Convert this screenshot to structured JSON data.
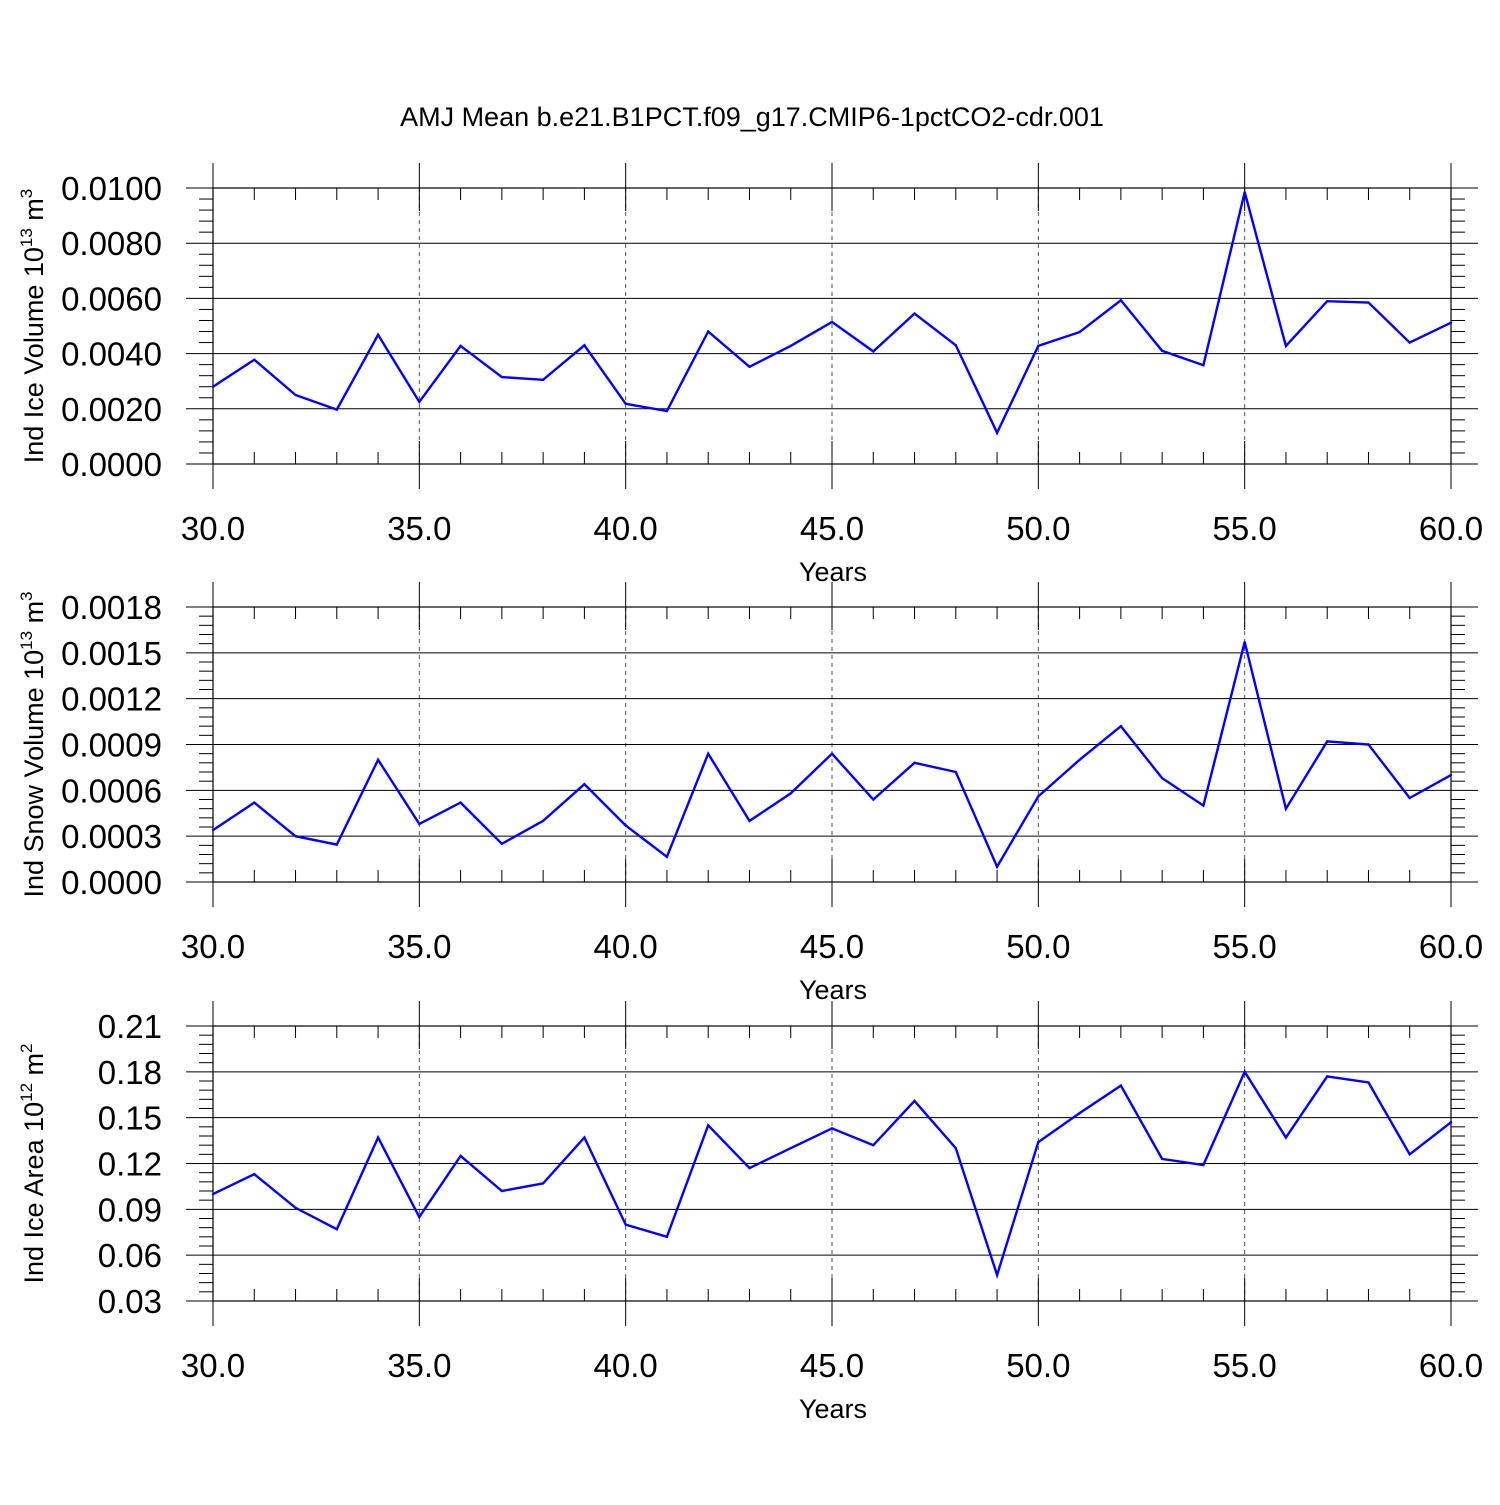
{
  "chart_data": {
    "title": "AMJ Mean b.e21.B1PCT.f09_g17.CMIP6-1pctCO2-cdr.001",
    "line_color": "#0000ff",
    "panels": [
      {
        "type": "line",
        "ylabel_main": "Ind Ice Volume 10",
        "ylabel_exp": "13",
        "ylabel_unit": " m",
        "ylabel_unit_exp": "3",
        "xlabel": "Years",
        "xlim": [
          30,
          60
        ],
        "ylim": [
          0,
          0.01
        ],
        "x_ticks": [
          30,
          35,
          40,
          45,
          50,
          55,
          60
        ],
        "x_tick_labels": [
          "30.0",
          "35.0",
          "40.0",
          "45.0",
          "50.0",
          "55.0",
          "60.0"
        ],
        "y_ticks": [
          0,
          0.002,
          0.004,
          0.006,
          0.008,
          0.01
        ],
        "y_tick_labels": [
          "0.0000",
          "0.0020",
          "0.0040",
          "0.0060",
          "0.0080",
          "0.0100"
        ],
        "x": [
          30,
          31,
          32,
          33,
          34,
          35,
          36,
          37,
          38,
          39,
          40,
          41,
          42,
          43,
          44,
          45,
          46,
          47,
          48,
          49,
          50,
          51,
          52,
          53,
          54,
          55,
          56,
          57,
          58,
          59,
          60
        ],
        "values": [
          0.0028,
          0.00378,
          0.0025,
          0.00197,
          0.00468,
          0.00225,
          0.00428,
          0.00315,
          0.00305,
          0.0043,
          0.00218,
          0.00192,
          0.0048,
          0.00352,
          0.00428,
          0.00515,
          0.00408,
          0.00545,
          0.0043,
          0.00113,
          0.00428,
          0.00478,
          0.00593,
          0.0041,
          0.00358,
          0.00985,
          0.00428,
          0.0059,
          0.00585,
          0.0044,
          0.00512
        ]
      },
      {
        "type": "line",
        "ylabel_main": "Ind Snow Volume 10",
        "ylabel_exp": "13",
        "ylabel_unit": " m",
        "ylabel_unit_exp": "3",
        "xlabel": "Years",
        "xlim": [
          30,
          60
        ],
        "ylim": [
          0,
          0.0018
        ],
        "x_ticks": [
          30,
          35,
          40,
          45,
          50,
          55,
          60
        ],
        "x_tick_labels": [
          "30.0",
          "35.0",
          "40.0",
          "45.0",
          "50.0",
          "55.0",
          "60.0"
        ],
        "y_ticks": [
          0,
          0.0003,
          0.0006,
          0.0009,
          0.0012,
          0.0015,
          0.0018
        ],
        "y_tick_labels": [
          "0.0000",
          "0.0003",
          "0.0006",
          "0.0009",
          "0.0012",
          "0.0015",
          "0.0018"
        ],
        "x": [
          30,
          31,
          32,
          33,
          34,
          35,
          36,
          37,
          38,
          39,
          40,
          41,
          42,
          43,
          44,
          45,
          46,
          47,
          48,
          49,
          50,
          51,
          52,
          53,
          54,
          55,
          56,
          57,
          58,
          59,
          60
        ],
        "values": [
          0.00034,
          0.00052,
          0.0003,
          0.000245,
          0.0008,
          0.00038,
          0.00052,
          0.00025,
          0.0004,
          0.00064,
          0.00037,
          0.000165,
          0.00084,
          0.0004,
          0.00058,
          0.00084,
          0.00054,
          0.00078,
          0.00072,
          0.0001,
          0.00056,
          0.0008,
          0.00102,
          0.00068,
          0.0005,
          0.00157,
          0.00048,
          0.00092,
          0.0009,
          0.00055,
          0.0007
        ]
      },
      {
        "type": "line",
        "ylabel_main": "Ind Ice Area 10",
        "ylabel_exp": "12",
        "ylabel_unit": " m",
        "ylabel_unit_exp": "2",
        "xlabel": "Years",
        "xlim": [
          30,
          60
        ],
        "ylim": [
          0.03,
          0.21
        ],
        "x_ticks": [
          30,
          35,
          40,
          45,
          50,
          55,
          60
        ],
        "x_tick_labels": [
          "30.0",
          "35.0",
          "40.0",
          "45.0",
          "50.0",
          "55.0",
          "60.0"
        ],
        "y_ticks": [
          0.03,
          0.06,
          0.09,
          0.12,
          0.15,
          0.18,
          0.21
        ],
        "y_tick_labels": [
          "0.03",
          "0.06",
          "0.09",
          "0.12",
          "0.15",
          "0.18",
          "0.21"
        ],
        "x": [
          30,
          31,
          32,
          33,
          34,
          35,
          36,
          37,
          38,
          39,
          40,
          41,
          42,
          43,
          44,
          45,
          46,
          47,
          48,
          49,
          50,
          51,
          52,
          53,
          54,
          55,
          56,
          57,
          58,
          59,
          60
        ],
        "values": [
          0.1,
          0.113,
          0.091,
          0.077,
          0.137,
          0.085,
          0.125,
          0.102,
          0.107,
          0.137,
          0.08,
          0.072,
          0.145,
          0.117,
          0.13,
          0.143,
          0.132,
          0.161,
          0.13,
          0.047,
          0.134,
          0.153,
          0.171,
          0.123,
          0.119,
          0.18,
          0.137,
          0.177,
          0.173,
          0.126,
          0.147
        ]
      }
    ]
  }
}
